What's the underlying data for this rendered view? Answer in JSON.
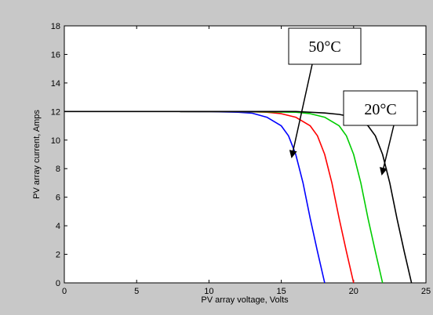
{
  "chart_data": {
    "type": "line",
    "xlabel": "PV array voltage, Volts",
    "ylabel": "PV array current, Amps",
    "xlim": [
      0,
      25
    ],
    "ylim": [
      0,
      18
    ],
    "xticks": [
      0,
      5,
      10,
      15,
      20,
      25
    ],
    "yticks": [
      0,
      2,
      4,
      6,
      8,
      10,
      12,
      14,
      16,
      18
    ],
    "grid": false,
    "series": [
      {
        "color": "#0000ff",
        "x": [
          8,
          10,
          12,
          13,
          14,
          15,
          15.5,
          16,
          16.5,
          17,
          17.5,
          18
        ],
        "y": [
          12,
          11.99,
          11.95,
          11.88,
          11.6,
          11.0,
          10.3,
          9.0,
          7.0,
          4.5,
          2.2,
          0
        ]
      },
      {
        "color": "#ff0000",
        "x": [
          8,
          12,
          14,
          15,
          16,
          17,
          17.5,
          18,
          18.5,
          19,
          19.5,
          20
        ],
        "y": [
          12,
          12,
          11.95,
          11.85,
          11.6,
          11.0,
          10.3,
          9.0,
          7.0,
          4.5,
          2.2,
          0
        ]
      },
      {
        "color": "#00cc00",
        "x": [
          8,
          12,
          16,
          17,
          18,
          19,
          19.5,
          20,
          20.5,
          21,
          21.5,
          22
        ],
        "y": [
          12,
          12,
          11.95,
          11.85,
          11.6,
          11.0,
          10.3,
          9.0,
          7.0,
          4.5,
          2.2,
          0
        ]
      },
      {
        "color": "#000000",
        "x": [
          0,
          10,
          15,
          16,
          18,
          19,
          20,
          21,
          21.5,
          22,
          22.5,
          23,
          23.5,
          24
        ],
        "y": [
          12,
          12,
          12,
          12,
          11.9,
          11.8,
          11.6,
          11.0,
          10.3,
          9.0,
          7.0,
          4.5,
          2.2,
          0
        ]
      }
    ],
    "annotations": [
      {
        "text": "50°C",
        "points_to": [
          15.8,
          8.6
        ]
      },
      {
        "text": "20°C",
        "points_to": [
          22.1,
          7.5
        ]
      }
    ]
  }
}
